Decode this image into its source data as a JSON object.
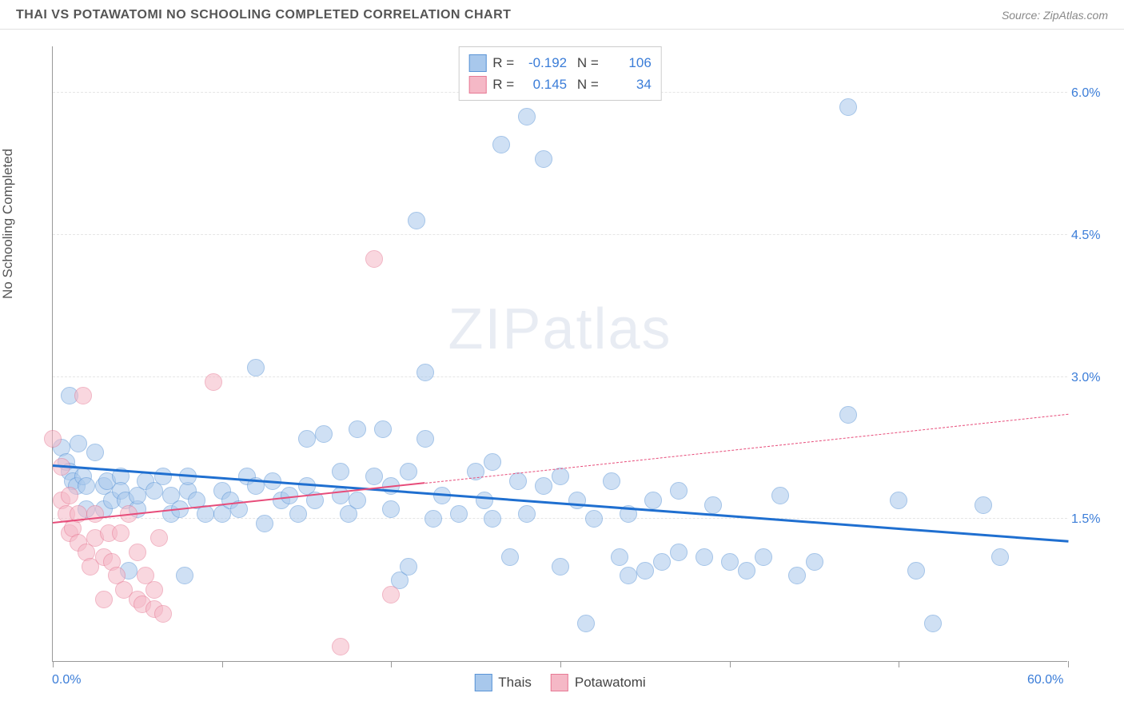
{
  "header": {
    "title": "THAI VS POTAWATOMI NO SCHOOLING COMPLETED CORRELATION CHART",
    "source": "Source: ZipAtlas.com"
  },
  "watermark": {
    "part1": "ZIP",
    "part2": "atlas"
  },
  "chart": {
    "type": "scatter",
    "y_axis_title": "No Schooling Completed",
    "xlim": [
      0,
      60
    ],
    "ylim": [
      0,
      6.5
    ],
    "x_ticks": [
      0,
      10,
      20,
      30,
      40,
      50,
      60
    ],
    "x_tick_labels_shown": {
      "min": "0.0%",
      "max": "60.0%"
    },
    "y_gridlines": [
      1.5,
      3.0,
      4.5,
      6.0
    ],
    "y_tick_labels": [
      "1.5%",
      "3.0%",
      "4.5%",
      "6.0%"
    ],
    "background_color": "#ffffff",
    "grid_color": "#e5e5e5",
    "axis_color": "#999999",
    "tick_label_color": "#3b7dd8",
    "marker_radius": 11,
    "marker_opacity": 0.55,
    "series": [
      {
        "name": "Thais",
        "fill": "#a8c8ec",
        "stroke": "#5a94d6",
        "R": "-0.192",
        "N": "106",
        "trend": {
          "x1": 0,
          "y1": 2.05,
          "x2": 60,
          "y2": 1.25,
          "solid_until_x": 60,
          "color": "#1f6fd0",
          "width": 3
        },
        "points": [
          [
            0.5,
            2.25
          ],
          [
            0.8,
            2.1
          ],
          [
            1,
            2.0
          ],
          [
            1,
            2.8
          ],
          [
            1.2,
            1.9
          ],
          [
            1.4,
            1.85
          ],
          [
            1.5,
            2.3
          ],
          [
            1.8,
            1.95
          ],
          [
            2,
            1.85
          ],
          [
            2,
            1.6
          ],
          [
            2.5,
            2.2
          ],
          [
            3,
            1.85
          ],
          [
            3,
            1.6
          ],
          [
            3.2,
            1.9
          ],
          [
            3.5,
            1.7
          ],
          [
            4,
            1.95
          ],
          [
            4,
            1.8
          ],
          [
            4.3,
            1.7
          ],
          [
            4.5,
            0.95
          ],
          [
            5,
            1.6
          ],
          [
            5,
            1.75
          ],
          [
            5.5,
            1.9
          ],
          [
            6,
            1.8
          ],
          [
            6.5,
            1.95
          ],
          [
            7,
            1.75
          ],
          [
            7,
            1.55
          ],
          [
            7.5,
            1.6
          ],
          [
            7.8,
            0.9
          ],
          [
            8,
            1.8
          ],
          [
            8,
            1.95
          ],
          [
            8.5,
            1.7
          ],
          [
            9,
            1.55
          ],
          [
            10,
            1.8
          ],
          [
            10,
            1.55
          ],
          [
            10.5,
            1.7
          ],
          [
            11,
            1.6
          ],
          [
            11.5,
            1.95
          ],
          [
            12,
            1.85
          ],
          [
            12.5,
            1.45
          ],
          [
            12,
            3.1
          ],
          [
            13,
            1.9
          ],
          [
            13.5,
            1.7
          ],
          [
            14,
            1.75
          ],
          [
            14.5,
            1.55
          ],
          [
            15,
            2.35
          ],
          [
            15,
            1.85
          ],
          [
            15.5,
            1.7
          ],
          [
            16,
            2.4
          ],
          [
            17,
            1.75
          ],
          [
            17,
            2.0
          ],
          [
            17.5,
            1.55
          ],
          [
            18,
            1.7
          ],
          [
            18,
            2.45
          ],
          [
            19,
            1.95
          ],
          [
            19.5,
            2.45
          ],
          [
            20,
            1.6
          ],
          [
            20,
            1.85
          ],
          [
            20.5,
            0.85
          ],
          [
            21,
            2.0
          ],
          [
            21,
            1.0
          ],
          [
            21.5,
            4.65
          ],
          [
            22,
            2.35
          ],
          [
            22,
            3.05
          ],
          [
            22.5,
            1.5
          ],
          [
            23,
            1.75
          ],
          [
            24,
            1.55
          ],
          [
            25,
            2.0
          ],
          [
            25.5,
            1.7
          ],
          [
            26,
            2.1
          ],
          [
            26,
            1.5
          ],
          [
            26.5,
            5.45
          ],
          [
            27,
            1.1
          ],
          [
            27.5,
            1.9
          ],
          [
            28,
            5.75
          ],
          [
            28,
            1.55
          ],
          [
            29,
            5.3
          ],
          [
            29,
            1.85
          ],
          [
            30,
            1.0
          ],
          [
            30,
            1.95
          ],
          [
            31,
            1.7
          ],
          [
            31.5,
            0.4
          ],
          [
            32,
            1.5
          ],
          [
            33,
            1.9
          ],
          [
            33.5,
            1.1
          ],
          [
            34,
            1.55
          ],
          [
            34,
            0.9
          ],
          [
            35,
            0.95
          ],
          [
            35.5,
            1.7
          ],
          [
            36,
            1.05
          ],
          [
            37,
            1.15
          ],
          [
            37,
            1.8
          ],
          [
            38.5,
            1.1
          ],
          [
            39,
            1.65
          ],
          [
            40,
            1.05
          ],
          [
            41,
            0.95
          ],
          [
            42,
            1.1
          ],
          [
            43,
            1.75
          ],
          [
            44,
            0.9
          ],
          [
            45,
            1.05
          ],
          [
            47,
            5.85
          ],
          [
            47,
            2.6
          ],
          [
            50,
            1.7
          ],
          [
            51,
            0.95
          ],
          [
            52,
            0.4
          ],
          [
            55,
            1.65
          ],
          [
            56,
            1.1
          ]
        ]
      },
      {
        "name": "Potawatomi",
        "fill": "#f5b8c6",
        "stroke": "#e77a95",
        "R": "0.145",
        "N": "34",
        "trend": {
          "x1": 0,
          "y1": 1.45,
          "x2": 60,
          "y2": 2.6,
          "solid_until_x": 22,
          "color": "#e74c7a",
          "width": 2.5
        },
        "points": [
          [
            0,
            2.35
          ],
          [
            0.5,
            2.05
          ],
          [
            0.5,
            1.7
          ],
          [
            0.8,
            1.55
          ],
          [
            1,
            1.35
          ],
          [
            1,
            1.75
          ],
          [
            1.2,
            1.4
          ],
          [
            1.5,
            1.25
          ],
          [
            1.5,
            1.55
          ],
          [
            1.8,
            2.8
          ],
          [
            2,
            1.15
          ],
          [
            2.2,
            1.0
          ],
          [
            2.5,
            1.55
          ],
          [
            2.5,
            1.3
          ],
          [
            3,
            1.1
          ],
          [
            3,
            0.65
          ],
          [
            3.3,
            1.35
          ],
          [
            3.5,
            1.05
          ],
          [
            3.8,
            0.9
          ],
          [
            4,
            1.35
          ],
          [
            4.2,
            0.75
          ],
          [
            4.5,
            1.55
          ],
          [
            5,
            0.65
          ],
          [
            5,
            1.15
          ],
          [
            5.3,
            0.6
          ],
          [
            5.5,
            0.9
          ],
          [
            6,
            0.55
          ],
          [
            6,
            0.75
          ],
          [
            6.3,
            1.3
          ],
          [
            6.5,
            0.5
          ],
          [
            9.5,
            2.95
          ],
          [
            17,
            0.15
          ],
          [
            19,
            4.25
          ],
          [
            20,
            0.7
          ]
        ]
      }
    ],
    "legend_bottom": [
      {
        "label": "Thais",
        "fill": "#a8c8ec",
        "stroke": "#5a94d6"
      },
      {
        "label": "Potawatomi",
        "fill": "#f5b8c6",
        "stroke": "#e77a95"
      }
    ]
  }
}
